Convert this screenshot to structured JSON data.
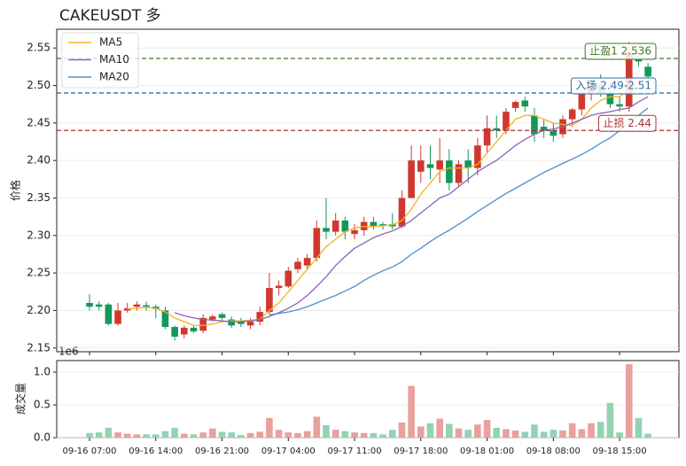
{
  "chart_data": [
    {
      "type": "candlestick",
      "title": "CAKEUSDT  多",
      "ylabel": "价格",
      "categories": [
        "09-16 07:00",
        null,
        null,
        null,
        null,
        null,
        null,
        "09-16 14:00",
        null,
        null,
        null,
        null,
        null,
        null,
        "09-16 21:00",
        null,
        null,
        null,
        null,
        null,
        null,
        "09-17 04:00",
        null,
        null,
        null,
        null,
        null,
        null,
        "09-17 11:00",
        null,
        null,
        null,
        null,
        null,
        null,
        "09-17 18:00",
        null,
        null,
        null,
        null,
        null,
        null,
        "09-18 01:00",
        null,
        null,
        null,
        null,
        null,
        null,
        "09-18 08:00",
        null,
        null,
        null,
        null,
        null,
        null,
        "09-18 15:00",
        null,
        null,
        null
      ],
      "open": [
        2.21,
        2.208,
        2.208,
        2.182,
        2.2,
        2.205,
        2.207,
        2.205,
        2.2,
        2.178,
        2.168,
        2.177,
        2.173,
        2.188,
        2.195,
        2.188,
        2.185,
        2.18,
        2.185,
        2.198,
        2.23,
        2.232,
        2.255,
        2.26,
        2.27,
        2.31,
        2.305,
        2.32,
        2.302,
        2.307,
        2.318,
        2.315,
        2.315,
        2.312,
        2.35,
        2.385,
        2.395,
        2.388,
        2.4,
        2.37,
        2.4,
        2.39,
        2.42,
        2.443,
        2.44,
        2.47,
        2.48,
        2.46,
        2.445,
        2.44,
        2.435,
        2.455,
        2.468,
        2.49,
        2.5,
        2.49,
        2.475,
        2.472,
        2.535,
        2.525
      ],
      "high": [
        2.222,
        2.212,
        2.21,
        2.21,
        2.21,
        2.212,
        2.212,
        2.208,
        2.205,
        2.18,
        2.18,
        2.18,
        2.195,
        2.195,
        2.197,
        2.192,
        2.19,
        2.19,
        2.205,
        2.25,
        2.24,
        2.258,
        2.27,
        2.275,
        2.32,
        2.35,
        2.33,
        2.325,
        2.315,
        2.325,
        2.325,
        2.318,
        2.33,
        2.36,
        2.42,
        2.42,
        2.42,
        2.43,
        2.415,
        2.4,
        2.415,
        2.43,
        2.46,
        2.46,
        2.47,
        2.48,
        2.485,
        2.47,
        2.455,
        2.45,
        2.46,
        2.47,
        2.5,
        2.51,
        2.515,
        2.505,
        2.485,
        2.558,
        2.545,
        2.53
      ],
      "low": [
        2.2,
        2.2,
        2.18,
        2.18,
        2.197,
        2.2,
        2.2,
        2.19,
        2.175,
        2.16,
        2.163,
        2.17,
        2.17,
        2.185,
        2.185,
        2.177,
        2.178,
        2.175,
        2.18,
        2.195,
        2.22,
        2.23,
        2.25,
        2.255,
        2.265,
        2.295,
        2.3,
        2.295,
        2.295,
        2.3,
        2.308,
        2.308,
        2.308,
        2.31,
        2.35,
        2.37,
        2.375,
        2.37,
        2.36,
        2.365,
        2.37,
        2.38,
        2.41,
        2.43,
        2.435,
        2.465,
        2.465,
        2.425,
        2.43,
        2.425,
        2.43,
        2.445,
        2.46,
        2.48,
        2.485,
        2.47,
        2.465,
        2.465,
        2.525,
        2.508
      ],
      "close": [
        2.205,
        2.205,
        2.182,
        2.2,
        2.203,
        2.208,
        2.205,
        2.202,
        2.178,
        2.165,
        2.177,
        2.172,
        2.19,
        2.192,
        2.19,
        2.18,
        2.182,
        2.185,
        2.198,
        2.23,
        2.233,
        2.253,
        2.265,
        2.27,
        2.31,
        2.305,
        2.32,
        2.305,
        2.307,
        2.318,
        2.312,
        2.313,
        2.312,
        2.35,
        2.4,
        2.4,
        2.39,
        2.4,
        2.37,
        2.395,
        2.39,
        2.42,
        2.443,
        2.44,
        2.465,
        2.478,
        2.472,
        2.435,
        2.44,
        2.433,
        2.455,
        2.468,
        2.49,
        2.5,
        2.49,
        2.475,
        2.472,
        2.545,
        2.532,
        2.512
      ],
      "up_color": "#d0382f",
      "down_color": "#14975a",
      "series": [
        {
          "name": "MA5",
          "color": "#f0b323",
          "values": [
            null,
            null,
            null,
            null,
            2.202,
            2.203,
            2.204,
            2.203,
            2.198,
            2.19,
            2.185,
            2.18,
            2.18,
            2.182,
            2.185,
            2.186,
            2.186,
            2.187,
            2.188,
            2.2,
            2.21,
            2.225,
            2.24,
            2.255,
            2.27,
            2.285,
            2.295,
            2.305,
            2.31,
            2.312,
            2.312,
            2.313,
            2.314,
            2.32,
            2.335,
            2.355,
            2.37,
            2.385,
            2.39,
            2.39,
            2.39,
            2.395,
            2.41,
            2.425,
            2.44,
            2.455,
            2.46,
            2.46,
            2.455,
            2.45,
            2.448,
            2.447,
            2.455,
            2.47,
            2.48,
            2.485,
            2.485,
            2.495,
            2.505,
            2.51
          ]
        },
        {
          "name": "MA10",
          "color": "#8a63b8",
          "values": [
            null,
            null,
            null,
            null,
            null,
            null,
            null,
            null,
            null,
            2.197,
            2.193,
            2.19,
            2.188,
            2.187,
            2.186,
            2.185,
            2.185,
            2.186,
            2.188,
            2.192,
            2.197,
            2.203,
            2.21,
            2.22,
            2.232,
            2.245,
            2.26,
            2.272,
            2.283,
            2.29,
            2.297,
            2.302,
            2.306,
            2.312,
            2.32,
            2.33,
            2.34,
            2.35,
            2.355,
            2.365,
            2.375,
            2.385,
            2.393,
            2.4,
            2.41,
            2.42,
            2.428,
            2.435,
            2.44,
            2.442,
            2.445,
            2.45,
            2.455,
            2.46,
            2.463,
            2.465,
            2.468,
            2.47,
            2.478,
            2.485
          ]
        },
        {
          "name": "MA20",
          "color": "#4a8fd0",
          "values": [
            null,
            null,
            null,
            null,
            null,
            null,
            null,
            null,
            null,
            null,
            null,
            null,
            null,
            null,
            null,
            null,
            null,
            null,
            null,
            2.194,
            2.196,
            2.198,
            2.201,
            2.205,
            2.21,
            2.215,
            2.22,
            2.226,
            2.232,
            2.24,
            2.247,
            2.253,
            2.258,
            2.265,
            2.275,
            2.283,
            2.292,
            2.3,
            2.307,
            2.315,
            2.323,
            2.332,
            2.34,
            2.348,
            2.356,
            2.363,
            2.37,
            2.377,
            2.384,
            2.39,
            2.396,
            2.402,
            2.408,
            2.415,
            2.423,
            2.43,
            2.44,
            2.45,
            2.46,
            2.47
          ]
        }
      ],
      "levels": [
        {
          "label": "止盈1 2.536",
          "value": 2.536,
          "color": "#3d7a26"
        },
        {
          "label": "入场 2.49-2.51",
          "value": 2.49,
          "color": "#2f6fa6"
        },
        {
          "label": "止损 2.44",
          "value": 2.44,
          "color": "#a83232"
        }
      ],
      "ylim": [
        2.145,
        2.575
      ],
      "yticks": [
        2.15,
        {
          "value": 2.2,
          "label": "2.20"
        },
        2.25,
        {
          "value": 2.3,
          "label": "2.30"
        },
        2.35,
        {
          "value": 2.4,
          "label": "2.40"
        },
        2.45,
        {
          "value": 2.5,
          "label": "2.50"
        },
        2.55
      ],
      "grid": true,
      "legend": "upper left"
    },
    {
      "type": "bar",
      "ylabel": "成交量",
      "offset_text": "1e6",
      "values": [
        0.07,
        0.08,
        0.15,
        0.08,
        0.06,
        0.05,
        0.05,
        0.05,
        0.1,
        0.15,
        0.06,
        0.05,
        0.08,
        0.14,
        0.09,
        0.08,
        0.04,
        0.07,
        0.09,
        0.3,
        0.12,
        0.08,
        0.07,
        0.1,
        0.32,
        0.19,
        0.12,
        0.1,
        0.08,
        0.07,
        0.07,
        0.05,
        0.12,
        0.23,
        0.79,
        0.17,
        0.22,
        0.29,
        0.21,
        0.14,
        0.12,
        0.2,
        0.27,
        0.15,
        0.13,
        0.11,
        0.09,
        0.2,
        0.09,
        0.12,
        0.11,
        0.22,
        0.13,
        0.22,
        0.24,
        0.53,
        0.08,
        1.12,
        0.3,
        0.06
      ],
      "up_color": "#e8a19d",
      "down_color": "#93d2b4",
      "ylim": [
        0,
        1.176
      ],
      "yticks": [
        {
          "value": 0,
          "label": "0.0"
        },
        {
          "value": 0.5,
          "label": "0.5"
        },
        {
          "value": 1,
          "label": "1.0"
        }
      ],
      "grid": true
    }
  ]
}
